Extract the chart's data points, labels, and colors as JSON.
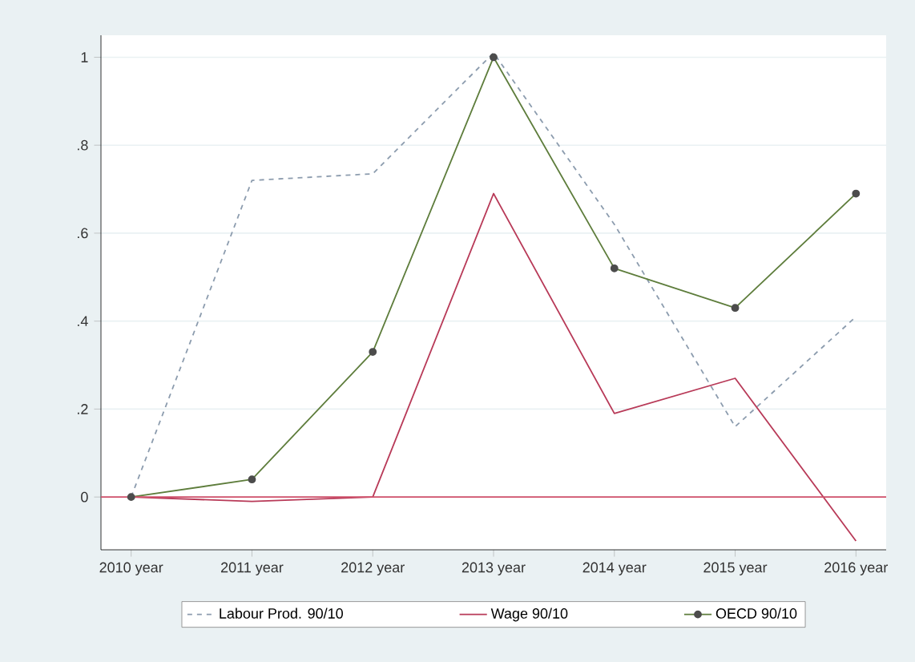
{
  "chart_data": {
    "type": "line",
    "categories": [
      "2010 year",
      "2011 year",
      "2012 year",
      "2013 year",
      "2014 year",
      "2015 year",
      "2016 year"
    ],
    "series": [
      {
        "name": "Labour Prod. 90/10",
        "color": "#8c9cae",
        "line_style": "dashed",
        "marker": "none",
        "values": [
          0,
          0.72,
          0.735,
          1.01,
          0.62,
          0.16,
          0.41
        ]
      },
      {
        "name": "Wage 90/10",
        "color": "#b83a58",
        "line_style": "solid",
        "marker": "none",
        "values": [
          0,
          -0.01,
          0,
          0.69,
          0.19,
          0.27,
          -0.1
        ]
      },
      {
        "name": "OECD 90/10",
        "color": "#5e7d3c",
        "line_style": "solid",
        "marker": "circle",
        "values": [
          0,
          0.04,
          0.33,
          1.0,
          0.52,
          0.43,
          0.69
        ]
      }
    ],
    "ylim": [
      -0.12,
      1.05
    ],
    "yticks": [
      0,
      {
        "value": 0.2,
        "label": ".2"
      },
      {
        "value": 0.4,
        "label": ".4"
      },
      {
        "value": 0.6,
        "label": ".6"
      },
      {
        "value": 0.8,
        "label": ".8"
      },
      1
    ],
    "grid": "y",
    "legend": "bottom",
    "ref_lines": [
      {
        "axis": "y",
        "value": 0,
        "color": "#d0506a"
      }
    ]
  }
}
